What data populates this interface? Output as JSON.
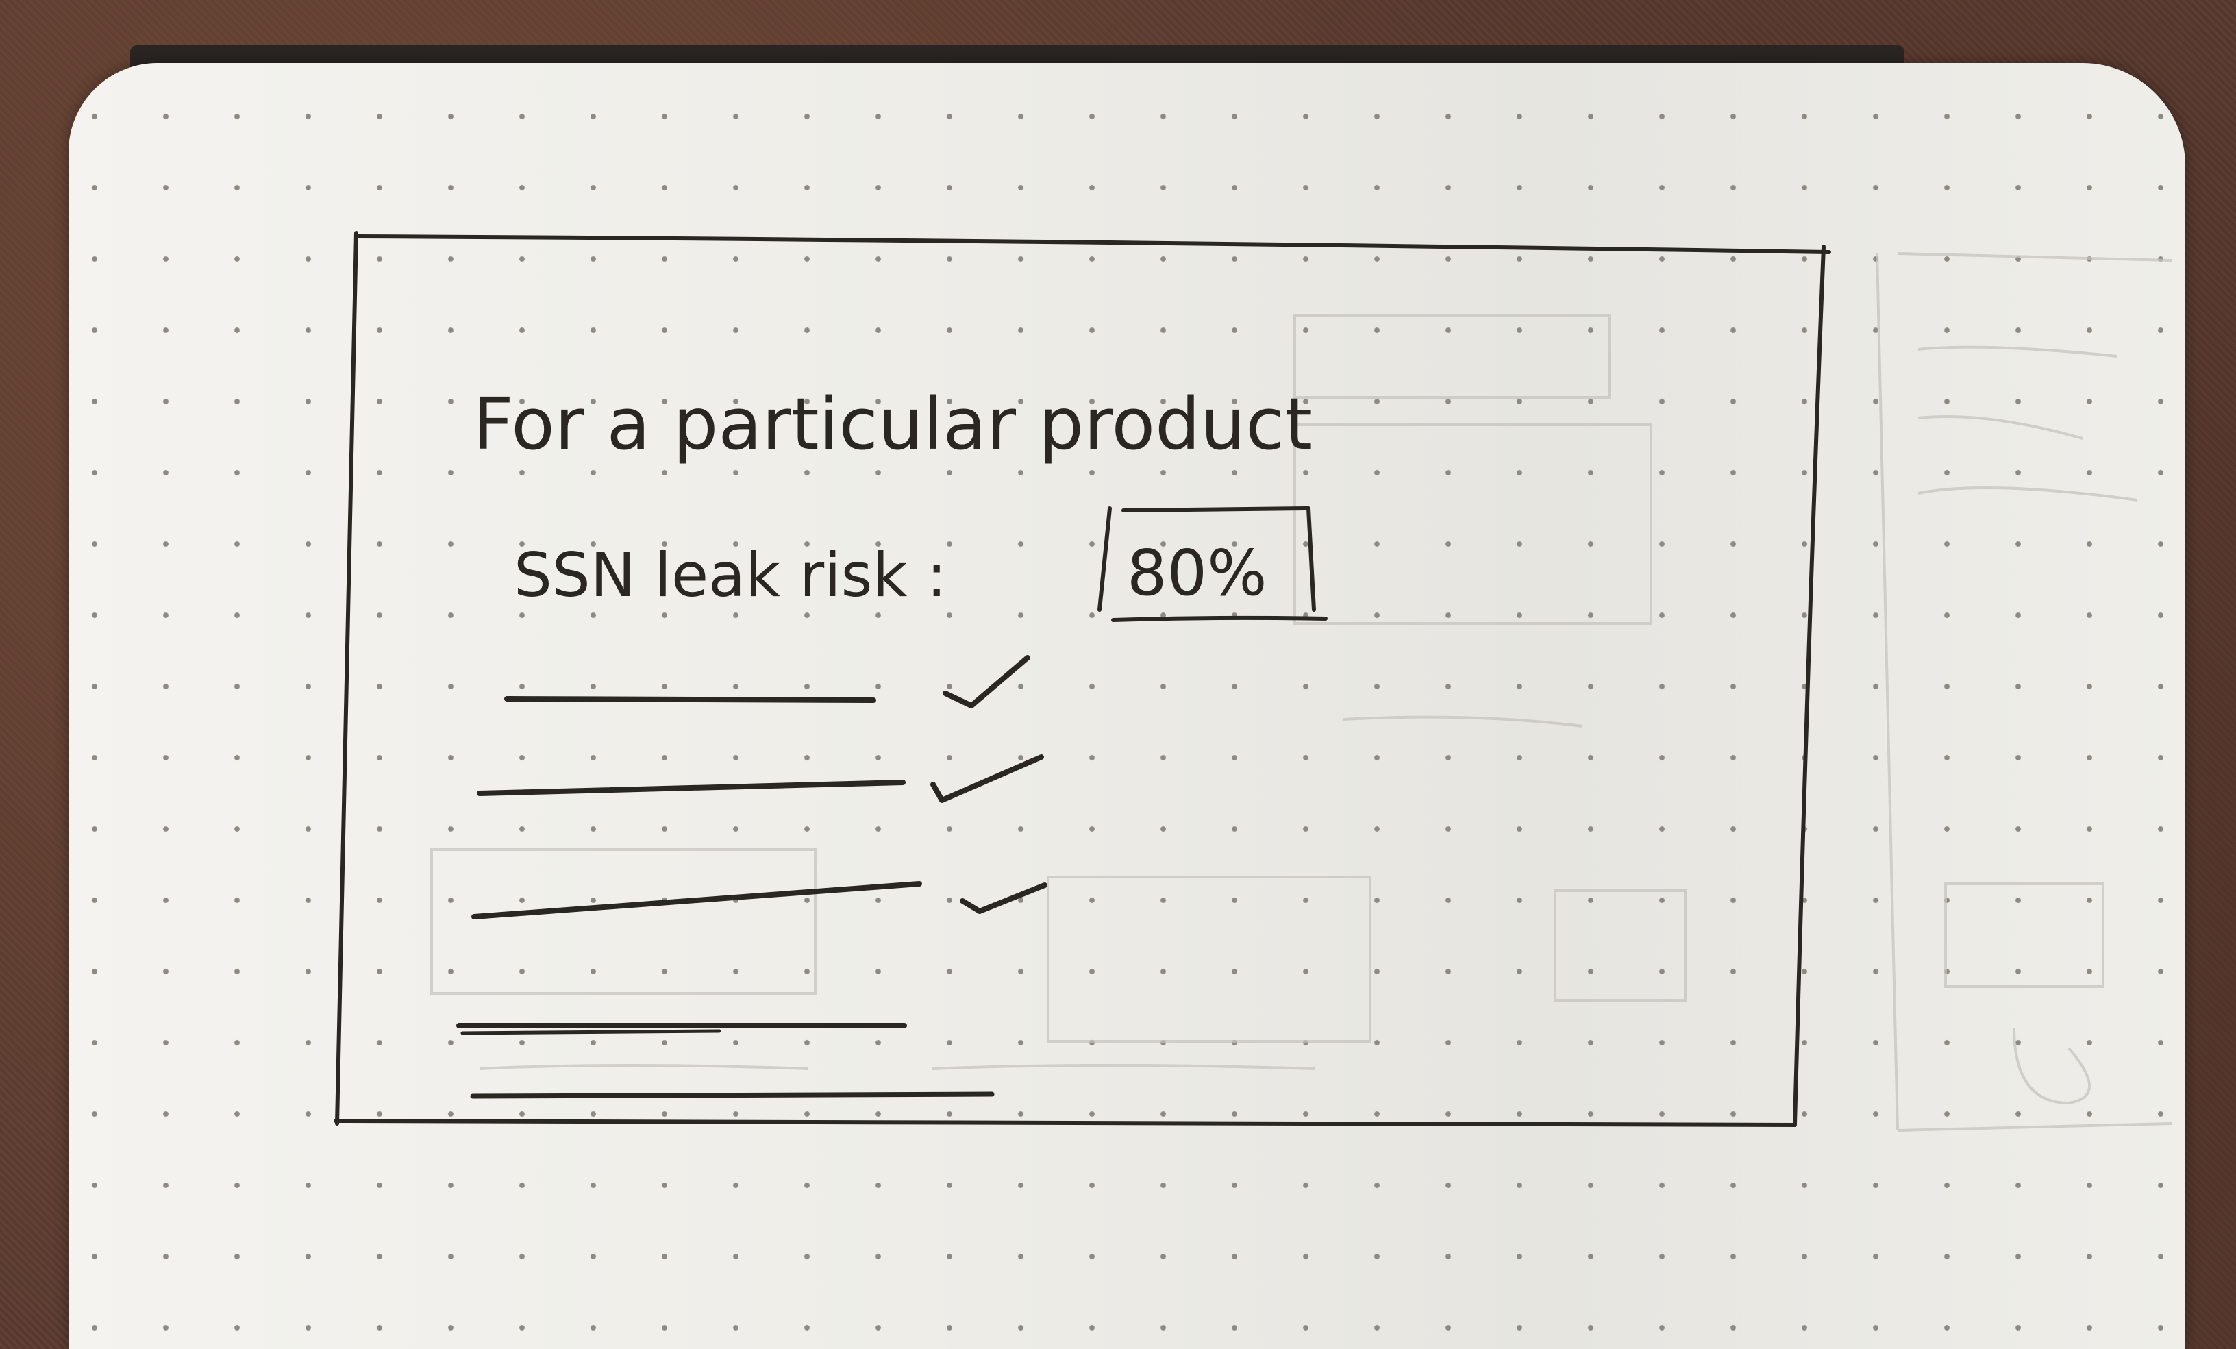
{
  "sketch": {
    "heading": "For a particular product",
    "risk_label": "SSN leak risk :",
    "risk_value": "80%",
    "checklist": [
      {
        "checked": true
      },
      {
        "checked": true
      },
      {
        "checked": true
      },
      {
        "checked": false
      },
      {
        "checked": false
      }
    ]
  }
}
